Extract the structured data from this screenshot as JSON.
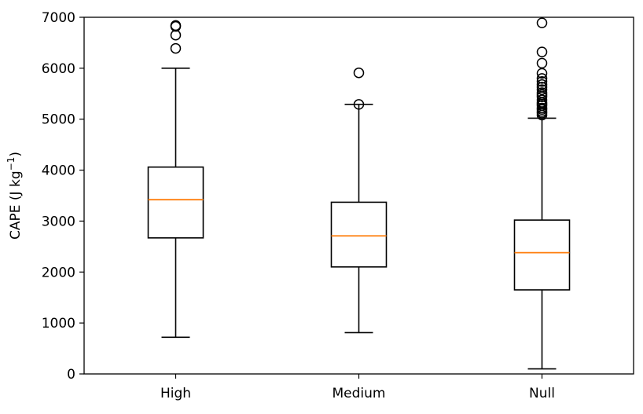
{
  "chart_data": {
    "type": "box",
    "categories": [
      "High",
      "Medium",
      "Null"
    ],
    "ylabel": "CAPE (J kg",
    "ylabel_unit_exponent": "−1",
    "ylabel_close": ")",
    "ylim": [
      0,
      7000
    ],
    "yticks": [
      0,
      1000,
      2000,
      3000,
      4000,
      5000,
      6000,
      7000
    ],
    "grid": false,
    "colors": {
      "box": "#000000",
      "median": "#ff7f0e",
      "flier": "#000000"
    },
    "boxes": [
      {
        "category": "High",
        "whisker_low": 720,
        "q1": 2670,
        "median": 3420,
        "q3": 4060,
        "whisker_high": 6000,
        "fliers": [
          6390,
          6650,
          6820,
          6840
        ]
      },
      {
        "category": "Medium",
        "whisker_low": 810,
        "q1": 2100,
        "median": 2710,
        "q3": 3370,
        "whisker_high": 5290,
        "fliers": [
          5290,
          5910
        ]
      },
      {
        "category": "Null",
        "whisker_low": 100,
        "q1": 1650,
        "median": 2380,
        "q3": 3020,
        "whisker_high": 5020,
        "fliers": [
          5080,
          5120,
          5150,
          5190,
          5220,
          5270,
          5300,
          5330,
          5380,
          5440,
          5480,
          5520,
          5580,
          5630,
          5680,
          5740,
          5800,
          5900,
          6100,
          6320,
          6890
        ]
      }
    ]
  }
}
